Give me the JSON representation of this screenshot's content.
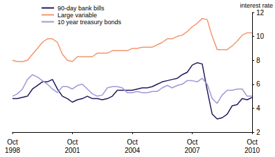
{
  "chart_data": {
    "type": "line",
    "y_label": "interest rate",
    "categories": [
      "Oct 1998",
      null,
      null,
      null,
      null,
      null,
      null,
      null,
      null,
      null,
      null,
      null,
      "Oct 2001",
      null,
      null,
      null,
      null,
      null,
      null,
      null,
      null,
      null,
      null,
      null,
      "Oct 2004",
      null,
      null,
      null,
      null,
      null,
      null,
      null,
      null,
      null,
      null,
      null,
      "Oct 2007",
      null,
      null,
      null,
      null,
      null,
      null,
      null,
      null,
      null,
      null,
      null,
      "Oct 2010"
    ],
    "series": [
      {
        "name": "90-day bank bills",
        "color": "#1f1a5e",
        "values": [
          4.8,
          4.8,
          4.9,
          5.0,
          5.6,
          5.9,
          6.2,
          6.2,
          6.4,
          5.6,
          5.0,
          4.8,
          4.5,
          4.7,
          4.8,
          5.0,
          4.8,
          4.8,
          4.7,
          4.8,
          5.0,
          5.5,
          5.5,
          5.5,
          5.5,
          5.6,
          5.7,
          5.7,
          5.8,
          6.0,
          6.2,
          6.3,
          6.4,
          6.5,
          6.8,
          7.0,
          7.6,
          7.8,
          7.7,
          5.5,
          3.5,
          3.1,
          3.2,
          3.5,
          4.2,
          4.3,
          4.8,
          4.7,
          4.9
        ]
      },
      {
        "name": "Large variable",
        "color": "#f4956a",
        "values": [
          8.0,
          7.9,
          7.9,
          8.0,
          8.5,
          9.0,
          9.5,
          9.8,
          9.8,
          9.5,
          8.5,
          8.0,
          7.9,
          8.3,
          8.3,
          8.3,
          8.3,
          8.6,
          8.6,
          8.6,
          8.8,
          8.8,
          8.8,
          8.8,
          9.0,
          9.0,
          9.1,
          9.1,
          9.1,
          9.3,
          9.5,
          9.8,
          9.8,
          10.0,
          10.1,
          10.4,
          10.8,
          11.1,
          11.5,
          11.4,
          10.0,
          8.9,
          8.9,
          8.9,
          9.2,
          9.6,
          10.1,
          10.3,
          10.3
        ]
      },
      {
        "name": "10 year treasury bonds",
        "color": "#9f97d6",
        "values": [
          5.0,
          5.2,
          5.6,
          6.4,
          6.8,
          6.6,
          6.3,
          6.0,
          5.6,
          5.3,
          5.8,
          5.8,
          5.6,
          5.9,
          6.0,
          5.6,
          5.2,
          5.0,
          5.1,
          5.7,
          5.8,
          5.8,
          5.7,
          5.3,
          5.3,
          5.4,
          5.3,
          5.3,
          5.4,
          5.4,
          5.7,
          5.9,
          5.7,
          5.9,
          6.0,
          6.3,
          6.3,
          6.2,
          6.5,
          6.0,
          4.8,
          4.4,
          5.1,
          5.5,
          5.5,
          5.6,
          5.6,
          5.0,
          5.0
        ]
      }
    ],
    "ylim": [
      2,
      12
    ],
    "yticks": [
      2,
      4,
      6,
      8,
      10,
      12
    ],
    "grid": false,
    "legend": "top-left"
  }
}
